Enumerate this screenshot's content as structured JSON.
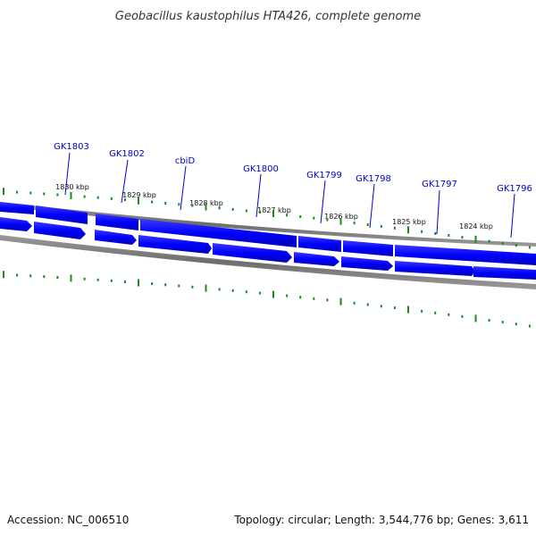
{
  "title": "Geobacillus kaustophilus HTA426, complete genome",
  "footer": {
    "accession": "Accession: NC_006510",
    "summary": "Topology: circular; Length: 3,544,776 bp; Genes: 3,611"
  },
  "colors": {
    "gene": "#0000ff",
    "gene_label": "#0000cc",
    "backbone": "#7a7a7a",
    "ticks": "#1a8a1a"
  },
  "gene_labels": [
    {
      "name": "GK1803"
    },
    {
      "name": "GK1802"
    },
    {
      "name": "cbiD"
    },
    {
      "name": "GK1800"
    },
    {
      "name": "GK1799"
    },
    {
      "name": "GK1798"
    },
    {
      "name": "GK1797"
    },
    {
      "name": "GK1796"
    }
  ],
  "kbp_labels": [
    "1830 kbp",
    "1829 kbp",
    "1828 kbp",
    "1827 kbp",
    "1826 kbp",
    "1825 kbp",
    "1824 kbp"
  ]
}
